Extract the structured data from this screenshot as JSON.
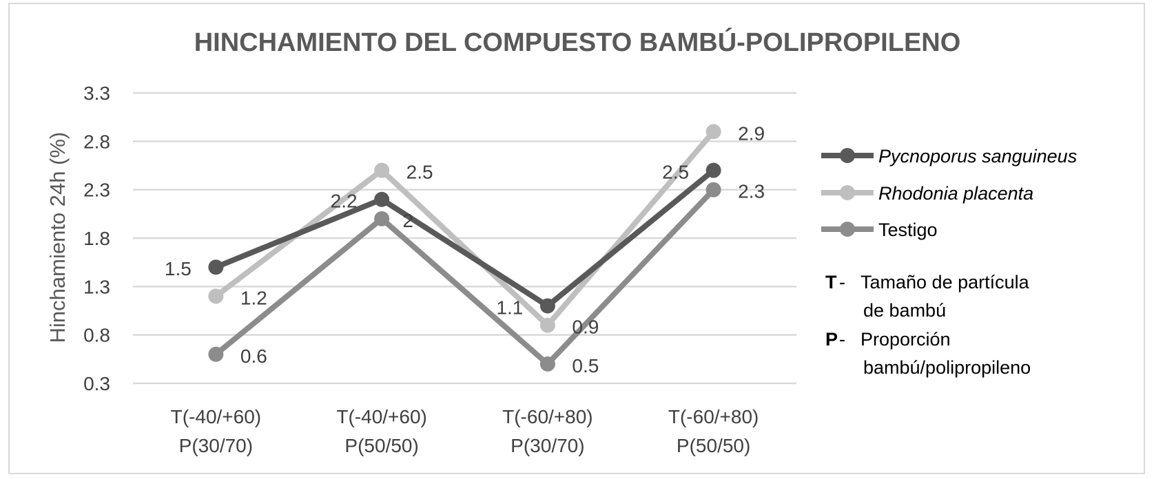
{
  "chart_data": {
    "type": "line",
    "title": "HINCHAMIENTO DEL COMPUESTO BAMBÚ-POLIPROPILENO",
    "ylabel": "Hinchamiento 24h (%)",
    "xlabel": "",
    "ylim": [
      0.3,
      3.3
    ],
    "yticks": [
      "3.3",
      "2.8",
      "2.3",
      "1.8",
      "1.3",
      "0.8",
      "0.3"
    ],
    "grid": true,
    "legend_position": "right",
    "categories": [
      [
        "T(-40/+60)",
        "P(30/70)"
      ],
      [
        "T(-40/+60)",
        "P(50/50)"
      ],
      [
        "T(-60/+80)",
        "P(30/70)"
      ],
      [
        "T(-60/+80)",
        "P(50/50)"
      ]
    ],
    "series": [
      {
        "name": "Pycnoporus sanguineus",
        "italic": true,
        "color": "#595959",
        "values": [
          1.5,
          2.2,
          1.1,
          2.5
        ],
        "labels": [
          "1.5",
          "2.2",
          "1.1",
          "2.5"
        ]
      },
      {
        "name": "Rhodonia placenta",
        "italic": true,
        "color": "#bfbfbf",
        "values": [
          1.2,
          2.5,
          0.9,
          2.9
        ],
        "labels": [
          "1.2",
          "2.5",
          "0.9",
          "2.9"
        ]
      },
      {
        "name": "Testigo",
        "italic": false,
        "color": "#8c8c8c",
        "values": [
          0.6,
          2.0,
          0.5,
          2.3
        ],
        "labels": [
          "0.6",
          "2",
          "0.5",
          "2.3"
        ]
      }
    ],
    "notes": [
      {
        "key": "T",
        "sep": " -",
        "lines": [
          "Tamaño de partícula",
          "de bambú"
        ]
      },
      {
        "key": "P",
        "sep": " -",
        "lines": [
          "Proporción",
          "bambú/polipropileno"
        ]
      }
    ]
  }
}
